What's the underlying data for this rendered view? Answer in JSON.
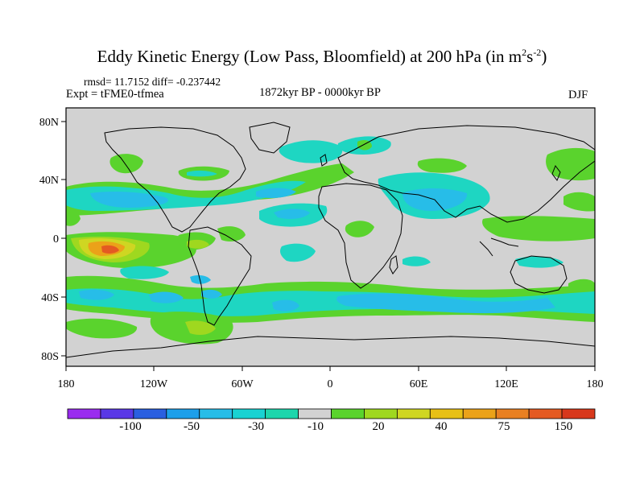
{
  "title": {
    "main": "Eddy Kinetic Energy (Low Pass, Bloomfield) at 200 hPa (in m",
    "sup1": "2",
    "mid": "s",
    "sup2": "-2",
    "end": ")"
  },
  "stats": "rmsd= 11.7152  diff= -0.237442",
  "expt": "Expt = tFME0-tfmea",
  "period": "1872kyr BP - 0000kyr BP",
  "season": "DJF",
  "lat_labels": [
    "80N",
    "40N",
    "0",
    "40S",
    "80S"
  ],
  "lon_labels": [
    "180",
    "120W",
    "60W",
    "0",
    "60E",
    "120E",
    "180"
  ],
  "colorbar": {
    "colors": [
      "#9a2cef",
      "#5a38e6",
      "#2a5fe0",
      "#1d9fea",
      "#27bde8",
      "#19d2d2",
      "#1ed6ac",
      "#d2d2d2",
      "#5ad32d",
      "#9fd81f",
      "#cfd622",
      "#e8c016",
      "#eba219",
      "#e98022",
      "#e45a22",
      "#d8381c"
    ],
    "labels": [
      "-100",
      "-50",
      "-30",
      "-10",
      "20",
      "40",
      "75",
      "150"
    ]
  },
  "palette": {
    "ocean": "#d2d2d2",
    "cyan": "#1ed6c2",
    "lightblue": "#27bde8",
    "green": "#5ad32d",
    "yellowgreen": "#9fd81f",
    "yellow": "#cfd622",
    "orange": "#eba219",
    "red": "#e45a22"
  }
}
